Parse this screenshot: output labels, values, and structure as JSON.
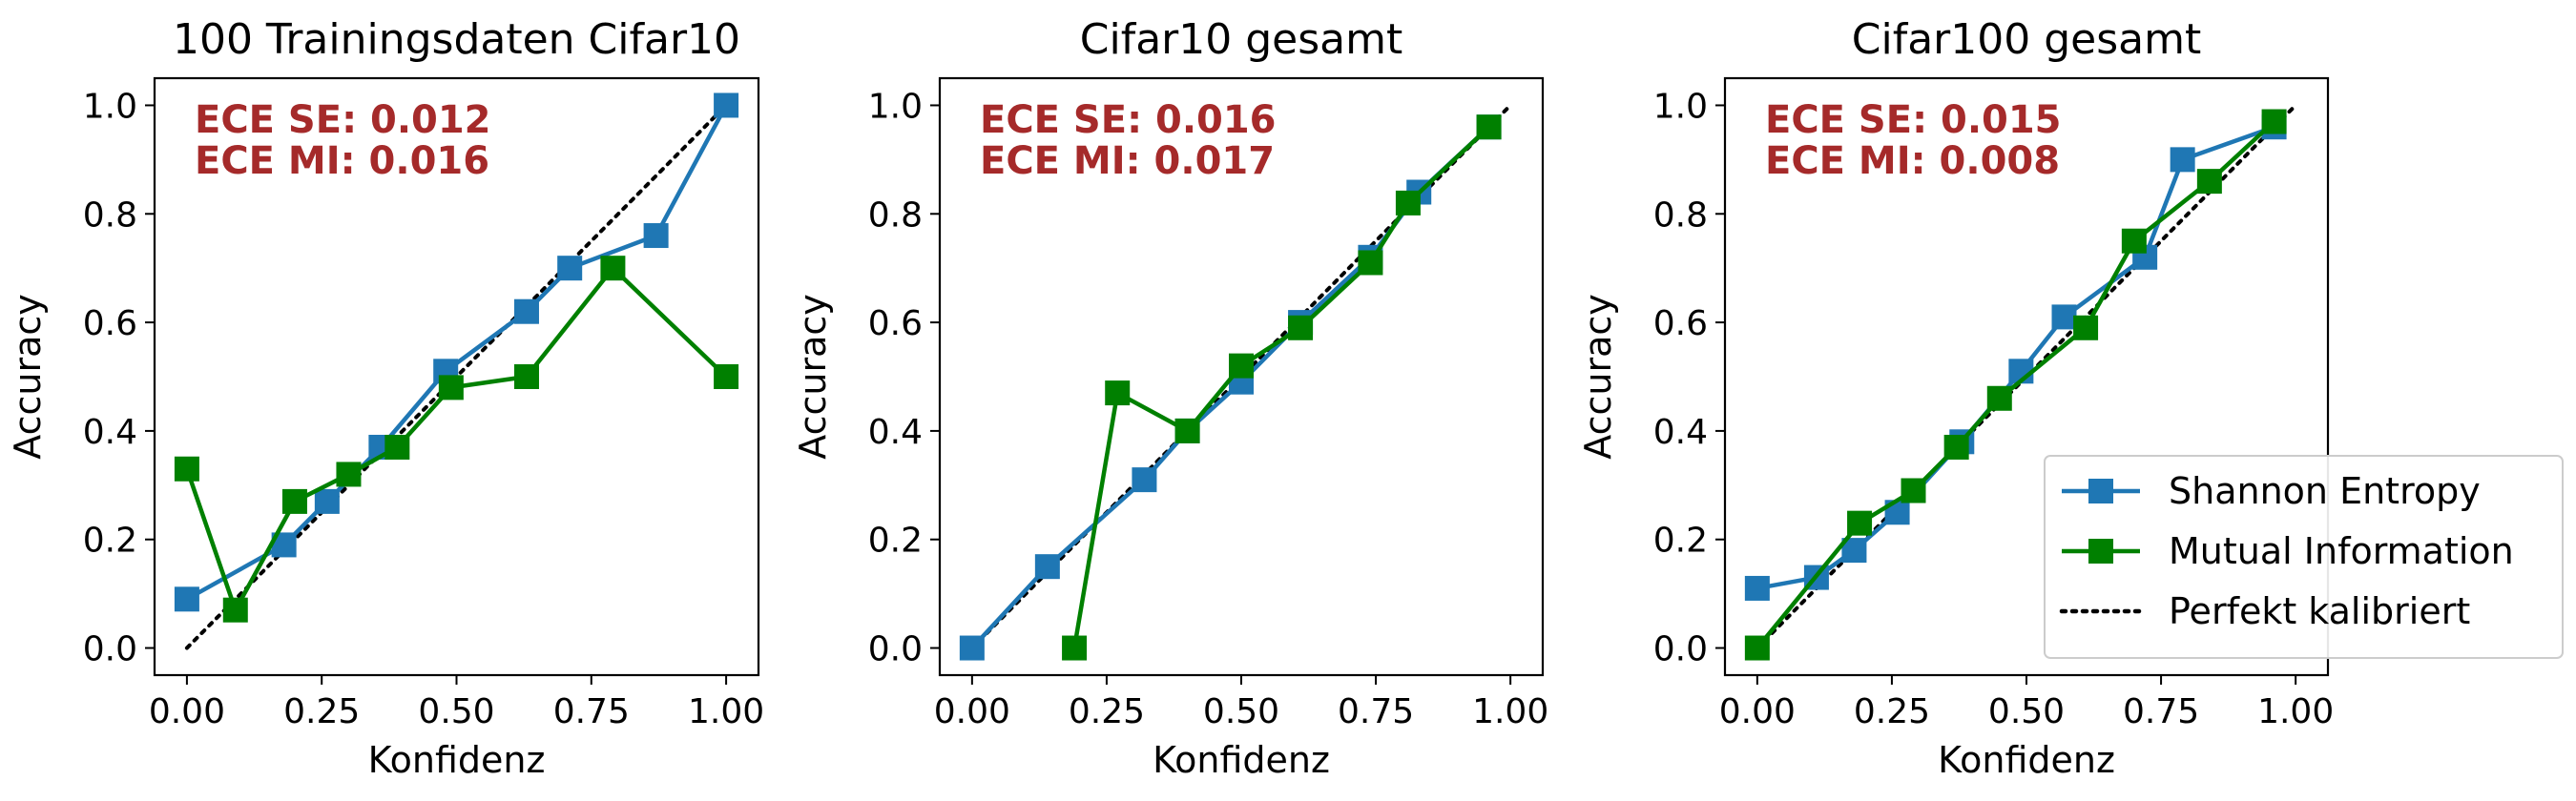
{
  "colors": {
    "shannon": "#1f77b4",
    "mutual": "#008000",
    "perfect": "#000000",
    "ece_text": "#a52a2a"
  },
  "legend": {
    "placement": "lower-right (third panel)",
    "entries": [
      "Shannon Entropy",
      "Mutual Information",
      "Perfekt kalibriert"
    ]
  },
  "chart_data": [
    {
      "type": "line",
      "title": "100 Trainingsdaten Cifar10",
      "xlabel": "Konfidenz",
      "ylabel": "Accuracy",
      "xlim": [
        -0.06,
        1.06
      ],
      "ylim": [
        -0.05,
        1.05
      ],
      "xticks": [
        "0.00",
        "0.25",
        "0.50",
        "0.75",
        "1.00"
      ],
      "yticks": [
        "0.0",
        "0.2",
        "0.4",
        "0.6",
        "0.8",
        "1.0"
      ],
      "annotations": [
        "ECE SE: 0.012",
        "ECE MI: 0.016"
      ],
      "series": [
        {
          "name": "Shannon Entropy",
          "x": [
            0.0,
            0.18,
            0.26,
            0.36,
            0.48,
            0.63,
            0.71,
            0.87,
            1.0
          ],
          "y": [
            0.09,
            0.19,
            0.27,
            0.37,
            0.51,
            0.62,
            0.7,
            0.76,
            1.0
          ]
        },
        {
          "name": "Mutual Information",
          "x": [
            0.0,
            0.09,
            0.2,
            0.3,
            0.39,
            0.49,
            0.63,
            0.79,
            1.0
          ],
          "y": [
            0.33,
            0.07,
            0.27,
            0.32,
            0.37,
            0.48,
            0.5,
            0.7,
            0.5
          ]
        }
      ]
    },
    {
      "type": "line",
      "title": "Cifar10 gesamt",
      "xlabel": "Konfidenz",
      "ylabel": "Accuracy",
      "xlim": [
        -0.06,
        1.06
      ],
      "ylim": [
        -0.05,
        1.05
      ],
      "xticks": [
        "0.00",
        "0.25",
        "0.50",
        "0.75",
        "1.00"
      ],
      "yticks": [
        "0.0",
        "0.2",
        "0.4",
        "0.6",
        "0.8",
        "1.0"
      ],
      "annotations": [
        "ECE SE: 0.016",
        "ECE MI: 0.017"
      ],
      "series": [
        {
          "name": "Shannon Entropy",
          "x": [
            0.0,
            0.14,
            0.32,
            0.4,
            0.5,
            0.61,
            0.74,
            0.83,
            0.96
          ],
          "y": [
            0.0,
            0.15,
            0.31,
            0.4,
            0.49,
            0.6,
            0.72,
            0.84,
            0.96
          ]
        },
        {
          "name": "Mutual Information",
          "x": [
            0.19,
            0.27,
            0.4,
            0.5,
            0.61,
            0.74,
            0.81,
            0.96
          ],
          "y": [
            0.0,
            0.47,
            0.4,
            0.52,
            0.59,
            0.71,
            0.82,
            0.96
          ]
        }
      ]
    },
    {
      "type": "line",
      "title": "Cifar100 gesamt",
      "xlabel": "Konfidenz",
      "ylabel": "Accuracy",
      "xlim": [
        -0.06,
        1.06
      ],
      "ylim": [
        -0.05,
        1.05
      ],
      "xticks": [
        "0.00",
        "0.25",
        "0.50",
        "0.75",
        "1.00"
      ],
      "yticks": [
        "0.0",
        "0.2",
        "0.4",
        "0.6",
        "0.8",
        "1.0"
      ],
      "annotations": [
        "ECE SE: 0.015",
        "ECE MI: 0.008"
      ],
      "series": [
        {
          "name": "Shannon Entropy",
          "x": [
            0.0,
            0.11,
            0.18,
            0.26,
            0.38,
            0.49,
            0.57,
            0.72,
            0.79,
            0.96
          ],
          "y": [
            0.11,
            0.13,
            0.18,
            0.25,
            0.38,
            0.51,
            0.61,
            0.72,
            0.9,
            0.96
          ]
        },
        {
          "name": "Mutual Information",
          "x": [
            0.0,
            0.19,
            0.29,
            0.37,
            0.45,
            0.61,
            0.7,
            0.84,
            0.96
          ],
          "y": [
            0.0,
            0.23,
            0.29,
            0.37,
            0.46,
            0.59,
            0.75,
            0.86,
            0.97
          ]
        }
      ]
    }
  ]
}
